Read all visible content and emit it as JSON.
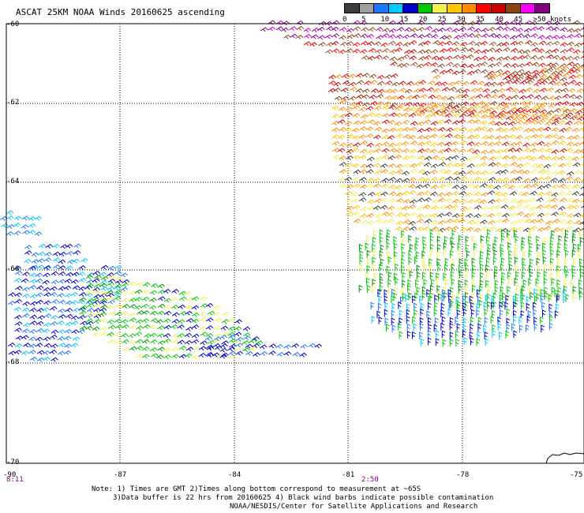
{
  "title": "ASCAT 25KM NOAA Winds 20160625 ascending",
  "legend": {
    "labels": [
      "0",
      "5",
      "10",
      "15",
      "20",
      "25",
      "30",
      "35",
      "40",
      "45",
      ">50 knots"
    ],
    "colors": [
      "#3c3c3c",
      "#a0a0a0",
      "#1e78ff",
      "#00c8ff",
      "#0000c8",
      "#00c800",
      "#f0f050",
      "#ffc800",
      "#ff8c00",
      "#ff0000",
      "#c80000",
      "#8b4513",
      "#ff00ff",
      "#800080"
    ]
  },
  "axes": {
    "lat_labels": [
      "-60",
      "-62",
      "-64",
      "-66",
      "-68",
      "-70"
    ],
    "lon_labels": [
      "-90",
      "-87",
      "-84",
      "-81",
      "-78",
      "-75"
    ],
    "lat_range": [
      -70,
      -60
    ],
    "lon_range": [
      -90,
      -75
    ]
  },
  "times": {
    "left": "8:11",
    "center": "2:50"
  },
  "note": {
    "line1": "Note: 1) Times are GMT 2)Times along bottom correspond to measurement at ~65S",
    "line2": "3)Data buffer is 22 hrs from 20160625 4) Black wind barbs indicate possible contamination",
    "line3": "NOAA/NESDIS/Center for Satellite Applications and Research"
  }
}
